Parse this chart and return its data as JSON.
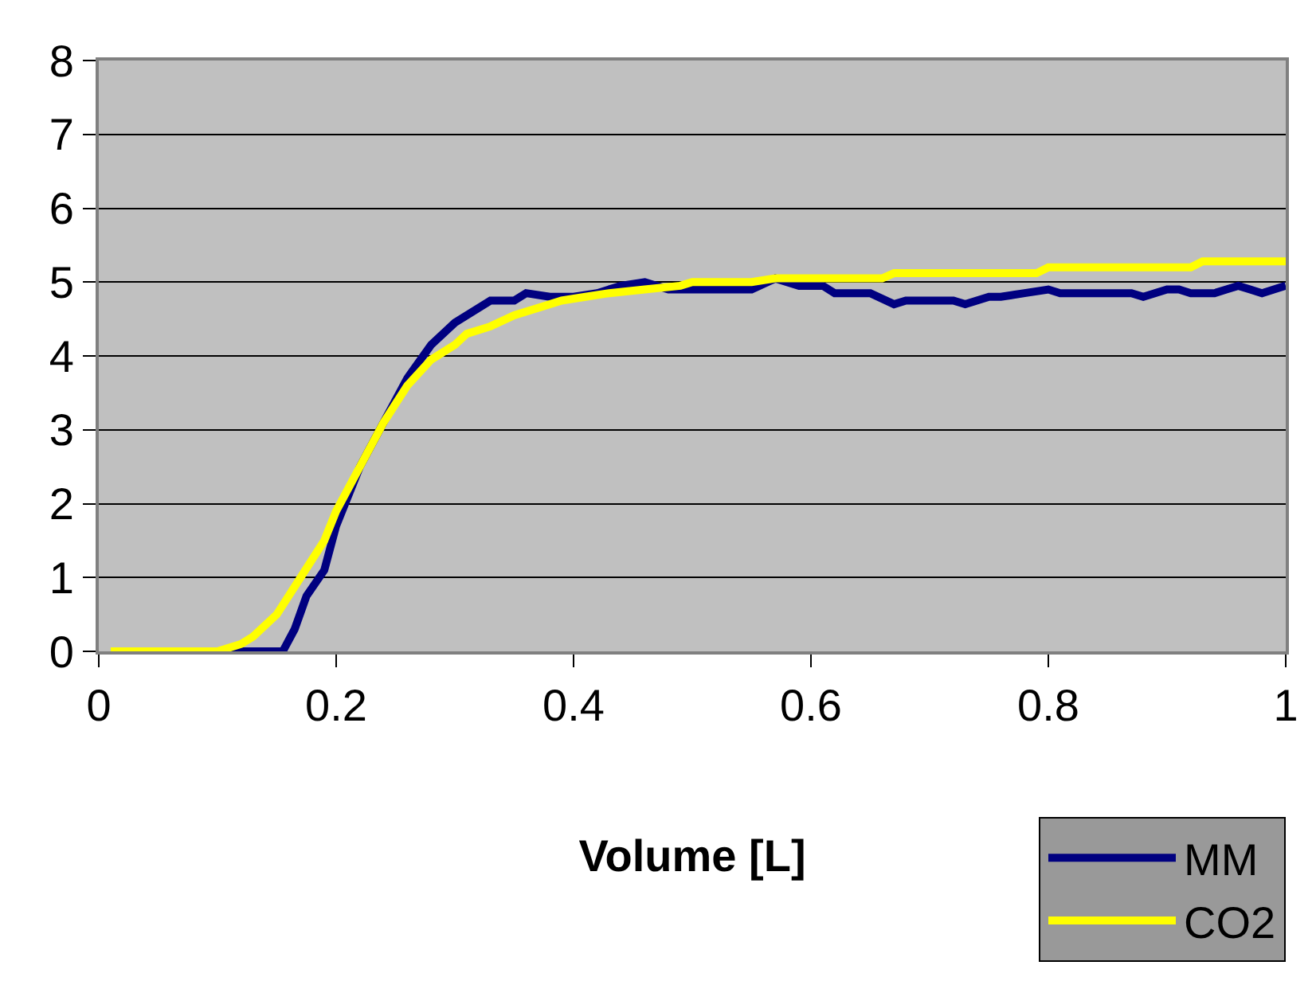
{
  "chart_data": {
    "type": "line",
    "xlabel": "Volume [L]",
    "xlim": [
      0,
      1
    ],
    "xticks": [
      0,
      0.2,
      0.4,
      0.6,
      0.8,
      1
    ],
    "ylim": [
      0,
      8
    ],
    "yticks": [
      0,
      1,
      2,
      3,
      4,
      5,
      6,
      7,
      8
    ],
    "grid": "y",
    "legend": "bottom right",
    "marker": "none",
    "line_style": "solid",
    "series": [
      {
        "name": "MM",
        "color": "#000080",
        "x": [
          0.11,
          0.155,
          0.165,
          0.175,
          0.19,
          0.2,
          0.22,
          0.24,
          0.26,
          0.28,
          0.3,
          0.32,
          0.33,
          0.35,
          0.36,
          0.38,
          0.4,
          0.42,
          0.44,
          0.46,
          0.48,
          0.5,
          0.55,
          0.57,
          0.59,
          0.61,
          0.62,
          0.65,
          0.67,
          0.68,
          0.72,
          0.73,
          0.75,
          0.76,
          0.78,
          0.8,
          0.81,
          0.87,
          0.88,
          0.9,
          0.91,
          0.92,
          0.94,
          0.95,
          0.96,
          0.97,
          0.98,
          0.99,
          1.0
        ],
        "values": [
          0,
          0,
          0.3,
          0.75,
          1.1,
          1.7,
          2.5,
          3.1,
          3.7,
          4.15,
          4.45,
          4.65,
          4.75,
          4.75,
          4.85,
          4.8,
          4.8,
          4.85,
          4.95,
          5.0,
          4.9,
          4.9,
          4.9,
          5.05,
          4.95,
          4.95,
          4.85,
          4.85,
          4.7,
          4.75,
          4.75,
          4.7,
          4.8,
          4.8,
          4.85,
          4.9,
          4.85,
          4.85,
          4.8,
          4.9,
          4.9,
          4.85,
          4.85,
          4.9,
          4.95,
          4.9,
          4.85,
          4.9,
          4.95
        ]
      },
      {
        "name": "CO2",
        "color": "#ffff00",
        "x": [
          0.01,
          0.1,
          0.12,
          0.13,
          0.15,
          0.17,
          0.19,
          0.2,
          0.22,
          0.24,
          0.26,
          0.28,
          0.3,
          0.31,
          0.33,
          0.35,
          0.37,
          0.39,
          0.41,
          0.43,
          0.46,
          0.49,
          0.5,
          0.55,
          0.57,
          0.66,
          0.67,
          0.79,
          0.8,
          0.92,
          0.93,
          1.0
        ],
        "values": [
          0,
          0,
          0.1,
          0.2,
          0.5,
          1.0,
          1.5,
          1.9,
          2.5,
          3.1,
          3.6,
          3.95,
          4.15,
          4.3,
          4.4,
          4.55,
          4.65,
          4.75,
          4.8,
          4.85,
          4.9,
          4.95,
          5.0,
          5.0,
          5.05,
          5.05,
          5.12,
          5.12,
          5.2,
          5.2,
          5.28,
          5.28
        ]
      }
    ]
  }
}
